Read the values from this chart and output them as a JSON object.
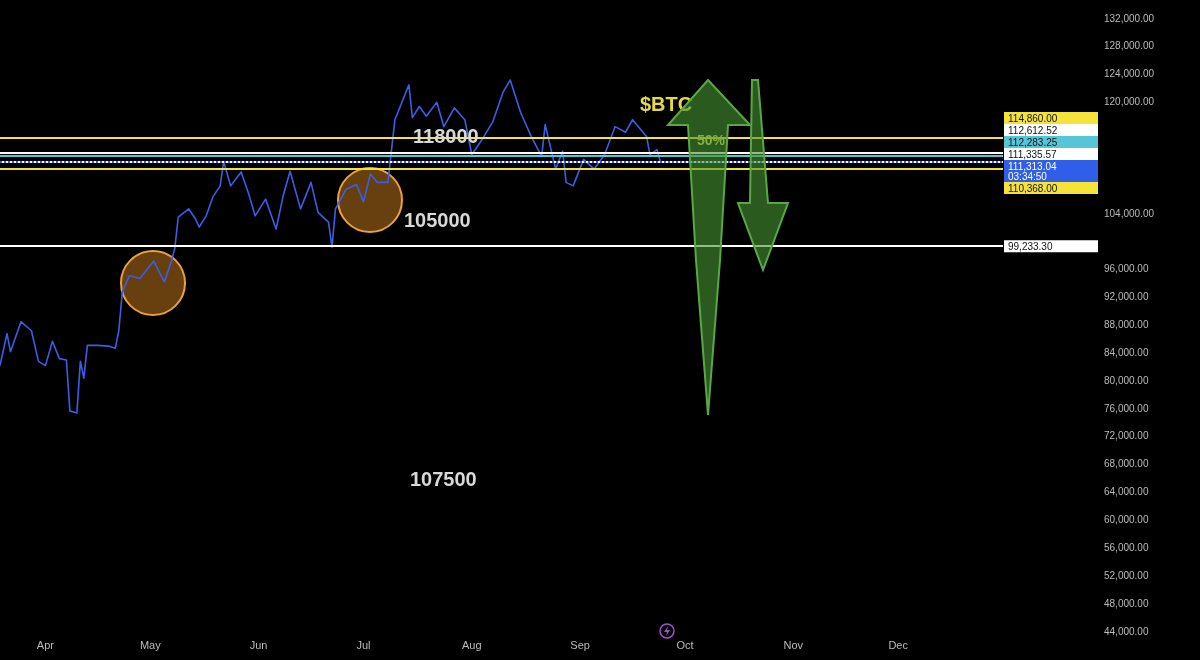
{
  "chart_data": {
    "type": "line",
    "marker": "none",
    "grid": false,
    "color": "#3b5ee8",
    "x": [
      "--03-19",
      "--03-21",
      "--03-22",
      "--03-25",
      "--03-28",
      "--03-30",
      "--04-01",
      "--04-03",
      "--04-05",
      "--04-07",
      "--04-08",
      "--04-10",
      "--04-11",
      "--04-12",
      "--04-13",
      "--04-16",
      "--04-19",
      "--04-21",
      "--04-22",
      "--04-23",
      "--04-25",
      "--04-28",
      "--05-02",
      "--05-05",
      "--05-07",
      "--05-08",
      "--05-09",
      "--05-12",
      "--05-14",
      "--05-15",
      "--05-17",
      "--05-19",
      "--05-21",
      "--05-22",
      "--05-24",
      "--05-27",
      "--05-29",
      "--05-31",
      "--06-03",
      "--06-06",
      "--06-08",
      "--06-10",
      "--06-13",
      "--06-16",
      "--06-18",
      "--06-21",
      "--06-22",
      "--06-23",
      "--06-26",
      "--06-29",
      "--07-01",
      "--07-03",
      "--07-05",
      "--07-08",
      "--07-10",
      "--07-14",
      "--07-15",
      "--07-17",
      "--07-19",
      "--07-22",
      "--07-24",
      "--07-27",
      "--07-30",
      "--08-01",
      "--08-04",
      "--08-07",
      "--08-10",
      "--08-12",
      "--08-15",
      "--08-18",
      "--08-21",
      "--08-22",
      "--08-25",
      "--08-27",
      "--08-28",
      "--08-30",
      "--09-02",
      "--09-05",
      "--09-08",
      "--09-11",
      "--09-14",
      "--09-16",
      "--09-20",
      "--09-21",
      "--09-23",
      "--09-24"
    ],
    "values": [
      82100,
      86700,
      84100,
      88400,
      87100,
      82700,
      82100,
      85600,
      83100,
      82900,
      75600,
      75300,
      82700,
      80300,
      85000,
      85000,
      84900,
      84600,
      87100,
      92700,
      95000,
      94600,
      97100,
      94100,
      97000,
      98900,
      103400,
      104600,
      103100,
      102000,
      103600,
      106400,
      107900,
      111400,
      107900,
      109900,
      107000,
      103600,
      106000,
      101700,
      106400,
      110000,
      104600,
      108400,
      104100,
      102700,
      99100,
      104600,
      107400,
      108100,
      105600,
      109600,
      108400,
      108400,
      117400,
      122400,
      117700,
      119300,
      117900,
      119900,
      116400,
      119100,
      117400,
      112400,
      114600,
      117100,
      121400,
      123100,
      118400,
      115000,
      112100,
      116700,
      110300,
      112900,
      108400,
      107900,
      111700,
      110300,
      112400,
      116400,
      115600,
      117400,
      115000,
      112400,
      113100,
      111300
    ],
    "xlim": [
      "--03-19",
      "--12-31"
    ],
    "xticks": [
      {
        "value": "--04-01",
        "label": "Apr"
      },
      {
        "value": "--05-01",
        "label": "May"
      },
      {
        "value": "--06-01",
        "label": "Jun"
      },
      {
        "value": "--07-01",
        "label": "Jul"
      },
      {
        "value": "--08-01",
        "label": "Aug"
      },
      {
        "value": "--09-01",
        "label": "Sep"
      },
      {
        "value": "--10-01",
        "label": "Oct"
      },
      {
        "value": "--11-01",
        "label": "Nov"
      },
      {
        "value": "--12-01",
        "label": "Dec"
      }
    ],
    "ylim": [
      44000,
      132000
    ],
    "yticks": [
      {
        "value": 44000,
        "label": "44,000.00"
      },
      {
        "value": 48000,
        "label": "48,000.00"
      },
      {
        "value": 52000,
        "label": "52,000.00"
      },
      {
        "value": 56000,
        "label": "56,000.00"
      },
      {
        "value": 60000,
        "label": "60,000.00"
      },
      {
        "value": 64000,
        "label": "64,000.00"
      },
      {
        "value": 68000,
        "label": "68,000.00"
      },
      {
        "value": 72000,
        "label": "72,000.00"
      },
      {
        "value": 76000,
        "label": "76,000.00"
      },
      {
        "value": 80000,
        "label": "80,000.00"
      },
      {
        "value": 84000,
        "label": "84,000.00"
      },
      {
        "value": 88000,
        "label": "88,000.00"
      },
      {
        "value": 92000,
        "label": "92,000.00"
      },
      {
        "value": 96000,
        "label": "96,000.00"
      },
      {
        "value": 104000,
        "label": "104,000.00"
      },
      {
        "value": 120000,
        "label": "120,000.00"
      },
      {
        "value": 124000,
        "label": "124,000.00"
      },
      {
        "value": 128000,
        "label": "128,000.00"
      },
      {
        "value": 132000,
        "label": "132,000.00"
      }
    ],
    "ref_lines": [
      {
        "axis": "y",
        "value": 114860,
        "label": "114,860.00",
        "color": "#f5e23a"
      },
      {
        "axis": "y",
        "value": 112612.52,
        "label": "112,612.52",
        "color": "#ffffff"
      },
      {
        "axis": "y",
        "value": 112283.25,
        "label": "112,283.25",
        "color": "#56c6d6"
      },
      {
        "axis": "y",
        "value": 111335.57,
        "label": "111,335.57",
        "color": "#ffffff"
      },
      {
        "axis": "y",
        "value": 111313.04,
        "label": "111,313.04\n03:34:50",
        "color": "#2f5fe8",
        "line_style": "dotted"
      },
      {
        "axis": "y",
        "value": 110368,
        "label": "110,368.00",
        "color": "#f5e23a"
      },
      {
        "axis": "y",
        "value": 99233.3,
        "label": "99,233.30",
        "color": "#ffffff"
      }
    ],
    "annotations": [
      "118000",
      "105000",
      "107500",
      "50%",
      "$BTC"
    ]
  }
}
